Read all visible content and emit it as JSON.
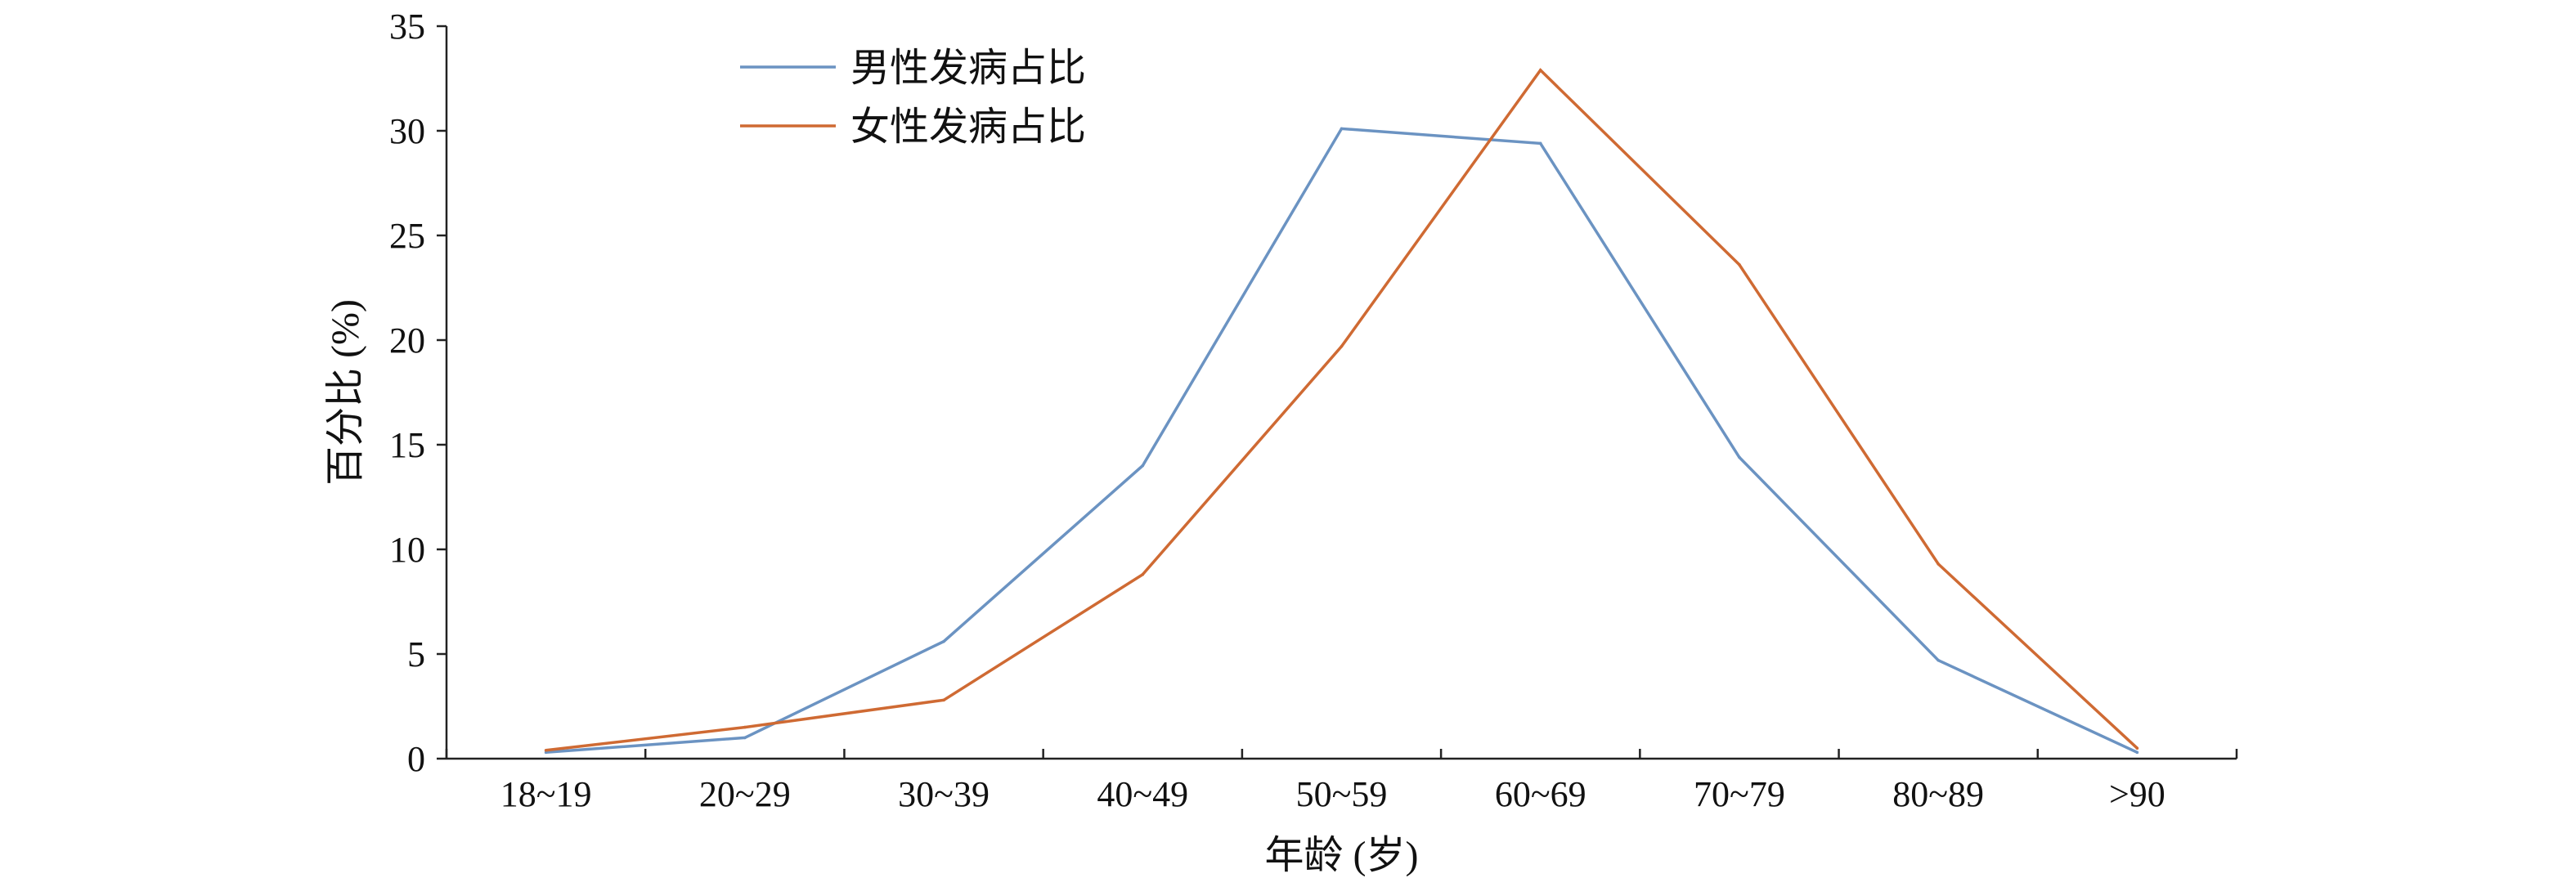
{
  "chart_data": {
    "type": "line",
    "title": "",
    "xlabel": "年龄 (岁)",
    "ylabel": "百分比 (%)",
    "categories": [
      "18~19",
      "20~29",
      "30~39",
      "40~49",
      "50~59",
      "60~69",
      "70~79",
      "80~89",
      ">90"
    ],
    "ylim": [
      0,
      35
    ],
    "yticks": [
      0,
      5,
      10,
      15,
      20,
      25,
      30,
      35
    ],
    "grid": false,
    "legend_position": "top-left",
    "series": [
      {
        "name": "男性发病占比",
        "color": "#6b93c2",
        "values": [
          0.3,
          1.0,
          5.6,
          14.0,
          30.1,
          29.4,
          14.4,
          4.7,
          0.3
        ]
      },
      {
        "name": "女性发病占比",
        "color": "#cf6a33",
        "values": [
          0.4,
          1.5,
          2.8,
          8.8,
          19.7,
          32.9,
          23.6,
          9.3,
          0.5
        ]
      }
    ]
  }
}
